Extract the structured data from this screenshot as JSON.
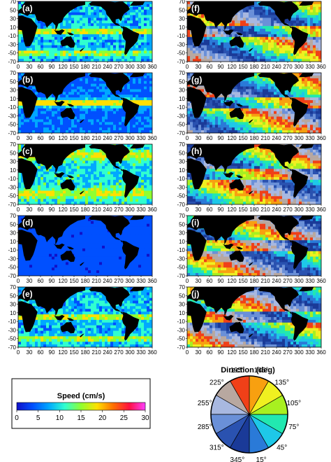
{
  "chart_data": [
    {
      "type": "heatmap",
      "panels": [
        {
          "label": "(a)",
          "quantity": "speed"
        },
        {
          "label": "(b)",
          "quantity": "speed"
        },
        {
          "label": "(c)",
          "quantity": "speed"
        },
        {
          "label": "(d)",
          "quantity": "speed"
        },
        {
          "label": "(e)",
          "quantity": "speed"
        },
        {
          "label": "(f)",
          "quantity": "direction"
        },
        {
          "label": "(g)",
          "quantity": "direction"
        },
        {
          "label": "(h)",
          "quantity": "direction"
        },
        {
          "label": "(i)",
          "quantity": "direction"
        },
        {
          "label": "(j)",
          "quantity": "direction"
        }
      ],
      "x_ticks": [
        "0",
        "30",
        "60",
        "90",
        "120",
        "150",
        "180",
        "210",
        "240",
        "270",
        "300",
        "330",
        "360"
      ],
      "y_ticks": [
        "70",
        "50",
        "30",
        "10",
        "-10",
        "-30",
        "-50",
        "-70"
      ],
      "xlim": [
        0,
        360
      ],
      "ylim": [
        -70,
        70
      ]
    },
    {
      "type": "colorbar",
      "title": "Speed (cm/s)",
      "ticks": [
        "0",
        "5",
        "10",
        "15",
        "20",
        "25",
        "30"
      ],
      "range": [
        0,
        30
      ],
      "colors": [
        "#1010c8",
        "#0050ff",
        "#00a8ff",
        "#30ffd0",
        "#90ff30",
        "#ffe000",
        "#ff7000",
        "#ff1040",
        "#ff40ff"
      ]
    },
    {
      "type": "pie",
      "title": "Direction (deg)",
      "slices": [
        {
          "label": "15°",
          "angle": 15,
          "color": "#2a7ad8"
        },
        {
          "label": "45°",
          "angle": 45,
          "color": "#1ec8e8"
        },
        {
          "label": "75°",
          "angle": 75,
          "color": "#22e8b0"
        },
        {
          "label": "105°",
          "angle": 105,
          "color": "#a8f020"
        },
        {
          "label": "135°",
          "angle": 135,
          "color": "#f0f020"
        },
        {
          "label": "165°",
          "angle": 165,
          "color": "#f8a010"
        },
        {
          "label": "195°",
          "angle": 195,
          "color": "#f04018"
        },
        {
          "label": "225°",
          "angle": 225,
          "color": "#b8a8a0"
        },
        {
          "label": "255°",
          "angle": 255,
          "color": "#a8b8e0"
        },
        {
          "label": "285°",
          "angle": 285,
          "color": "#6a90d8"
        },
        {
          "label": "315°",
          "angle": 315,
          "color": "#2a52b0"
        },
        {
          "label": "345°",
          "angle": 345,
          "color": "#1a3a98"
        }
      ]
    }
  ]
}
